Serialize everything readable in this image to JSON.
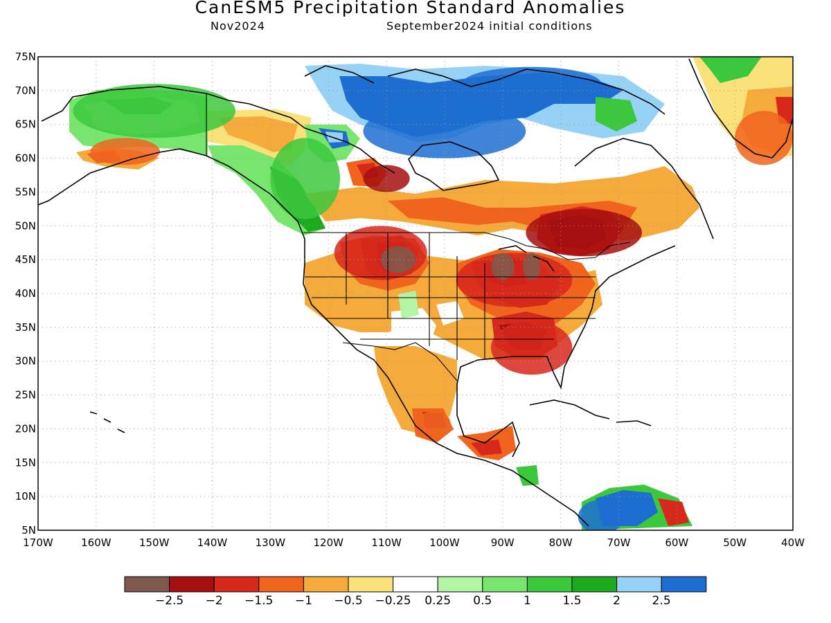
{
  "header": {
    "title": "CanESM5 Precipitation Standard Anomalies",
    "valid_month": "Nov2024",
    "init_conditions": "September2024 initial conditions"
  },
  "map": {
    "lon_range": [
      -170,
      -40
    ],
    "lat_range": [
      5,
      75
    ],
    "lat_ticks": [
      "5N",
      "10N",
      "15N",
      "20N",
      "25N",
      "30N",
      "35N",
      "40N",
      "45N",
      "50N",
      "55N",
      "60N",
      "65N",
      "70N",
      "75N"
    ],
    "lon_ticks": [
      "170W",
      "160W",
      "150W",
      "140W",
      "130W",
      "120W",
      "110W",
      "100W",
      "90W",
      "80W",
      "70W",
      "60W",
      "50W",
      "40W"
    ],
    "gridlines": "dotted"
  },
  "colorbar": {
    "colors": [
      "#7f5a4c",
      "#a50f0f",
      "#d7281c",
      "#f0641e",
      "#f5aa3c",
      "#fae17a",
      "#ffffff",
      "#b4f5a5",
      "#78e66e",
      "#3cc83c",
      "#1eaa1e",
      "#96d2f5",
      "#1e6ed2"
    ],
    "labels": [
      "−2.5",
      "−2",
      "−1.5",
      "−1",
      "−0.5",
      "−0.25",
      "0.25",
      "0.5",
      "1",
      "1.5",
      "2",
      "2.5"
    ]
  },
  "anomaly_regions": [
    {
      "lon": -111,
      "lat": 46,
      "rx": 8,
      "ry": 4,
      "level": 2
    },
    {
      "lon": -108,
      "lat": 45,
      "rx": 3,
      "ry": 2,
      "level": 0
    },
    {
      "lon": -88,
      "lat": 42,
      "rx": 10,
      "ry": 4,
      "level": 2
    },
    {
      "lon": -90,
      "lat": 44,
      "rx": 2,
      "ry": 2,
      "level": 0
    },
    {
      "lon": -85,
      "lat": 44,
      "rx": 1.5,
      "ry": 2,
      "level": 0
    },
    {
      "lon": -76,
      "lat": 49,
      "rx": 10,
      "ry": 3.5,
      "level": 1
    },
    {
      "lon": -85,
      "lat": 32,
      "rx": 7,
      "ry": 4,
      "level": 2
    },
    {
      "lon": -110,
      "lat": 57,
      "rx": 4,
      "ry": 2,
      "level": 1
    },
    {
      "lon": -100,
      "lat": 64,
      "rx": 14,
      "ry": 4,
      "level": 12
    },
    {
      "lon": -85,
      "lat": 71,
      "rx": 12,
      "ry": 2.5,
      "level": 12
    },
    {
      "lon": -150,
      "lat": 67,
      "rx": 14,
      "ry": 4,
      "level": 9
    },
    {
      "lon": -124,
      "lat": 57,
      "rx": 6,
      "ry": 6,
      "level": 9
    },
    {
      "lon": -73,
      "lat": 7,
      "rx": 4,
      "ry": 2.5,
      "level": 12
    },
    {
      "lon": -155,
      "lat": 61,
      "rx": 6,
      "ry": 2,
      "level": 3
    },
    {
      "lon": -45,
      "lat": 63,
      "rx": 5,
      "ry": 4,
      "level": 3
    },
    {
      "lon": -102,
      "lat": 21,
      "rx": 3,
      "ry": 1.5,
      "level": 3
    }
  ]
}
